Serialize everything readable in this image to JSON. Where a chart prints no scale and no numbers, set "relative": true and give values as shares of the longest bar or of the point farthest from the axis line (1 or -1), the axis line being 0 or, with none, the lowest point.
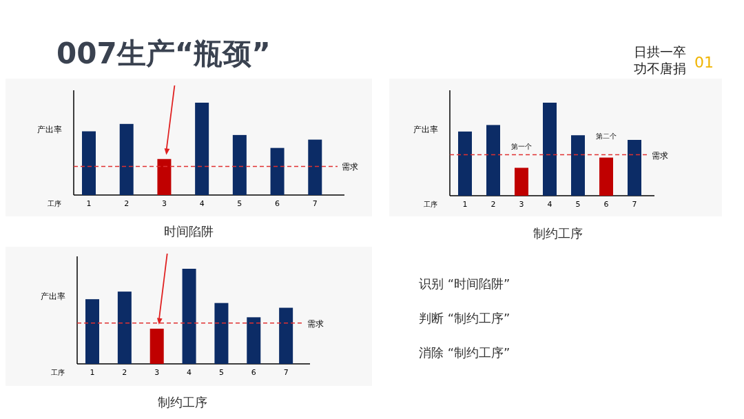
{
  "chart_data": [
    {
      "type": "bar",
      "title": "时间陷阱",
      "xlabel": "工序",
      "ylabel": "产出率",
      "categories": [
        "1",
        "2",
        "3",
        "4",
        "5",
        "6",
        "7"
      ],
      "relative": true,
      "values": [
        0.69,
        0.77,
        0.39,
        1,
        0.65,
        0.51,
        0.6
      ],
      "colors": [
        "#0c2c66",
        "#0c2c66",
        "#c00000",
        "#0c2c66",
        "#0c2c66",
        "#0c2c66",
        "#0c2c66"
      ],
      "ref_lines": [
        {
          "axis": "y",
          "value": 0.31,
          "label": "需求",
          "color": "#e03030",
          "line_style": "dashed"
        }
      ]
    },
    {
      "type": "bar",
      "title": "制约工序",
      "xlabel": "工序",
      "ylabel": "产出率",
      "categories": [
        "1",
        "2",
        "3",
        "4",
        "5",
        "6",
        "7"
      ],
      "relative": true,
      "values": [
        0.69,
        0.76,
        0.3,
        1,
        0.65,
        0.41,
        0.6
      ],
      "colors": [
        "#0c2c66",
        "#0c2c66",
        "#c00000",
        "#0c2c66",
        "#0c2c66",
        "#c00000",
        "#0c2c66"
      ],
      "ref_lines": [
        {
          "axis": "y",
          "value": 0.44,
          "label": "需求",
          "color": "#e03030",
          "line_style": "dashed"
        }
      ],
      "annotations": [
        "第一个",
        "第二个"
      ]
    },
    {
      "type": "bar",
      "title": "制约工序",
      "xlabel": "工序",
      "ylabel": "产出率",
      "categories": [
        "1",
        "2",
        "3",
        "4",
        "5",
        "6",
        "7"
      ],
      "relative": true,
      "values": [
        0.68,
        0.76,
        0.37,
        1,
        0.64,
        0.49,
        0.59
      ],
      "colors": [
        "#0c2c66",
        "#0c2c66",
        "#c00000",
        "#0c2c66",
        "#0c2c66",
        "#0c2c66",
        "#0c2c66"
      ],
      "ref_lines": [
        {
          "axis": "y",
          "value": 0.43,
          "label": "需求",
          "color": "#e03030",
          "line_style": "dashed"
        }
      ]
    },
    {
      "type": "other",
      "title": "007生产“瓶颈”",
      "annotations": [
        "识别 “时间陷阱”",
        "判断 “制约工序”",
        "消除 “制约工序”",
        "日拱一卒",
        "功不唐捐",
        "01"
      ]
    }
  ]
}
